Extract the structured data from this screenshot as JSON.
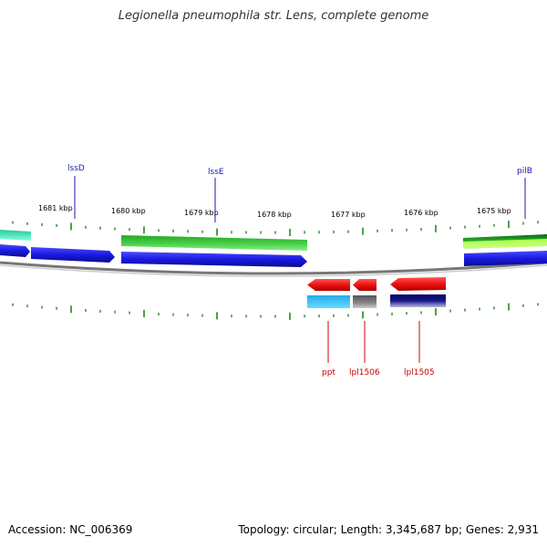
{
  "title": "Legionella pneumophila str. Lens, complete genome",
  "footer": {
    "accession": "Accession: NC_006369",
    "summary": "Topology: circular; Length: 3,345,687 bp; Genes: 2,931"
  },
  "scale_labels": [
    "1681 kbp",
    "1680 kbp",
    "1679 kbp",
    "1678 kbp",
    "1677 kbp",
    "1676 kbp",
    "1675 kbp"
  ],
  "top_gene_labels": [
    "lssD",
    "lssE",
    "pilB"
  ],
  "bottom_gene_labels": [
    "ppt",
    "lpl1506",
    "lpl1505"
  ],
  "colors": {
    "forward_cds": "#1a1ae0",
    "forward_feature": "#33bb33",
    "reverse_cds": "#ee1111",
    "tick": "#228822",
    "backbone": "#888888"
  }
}
